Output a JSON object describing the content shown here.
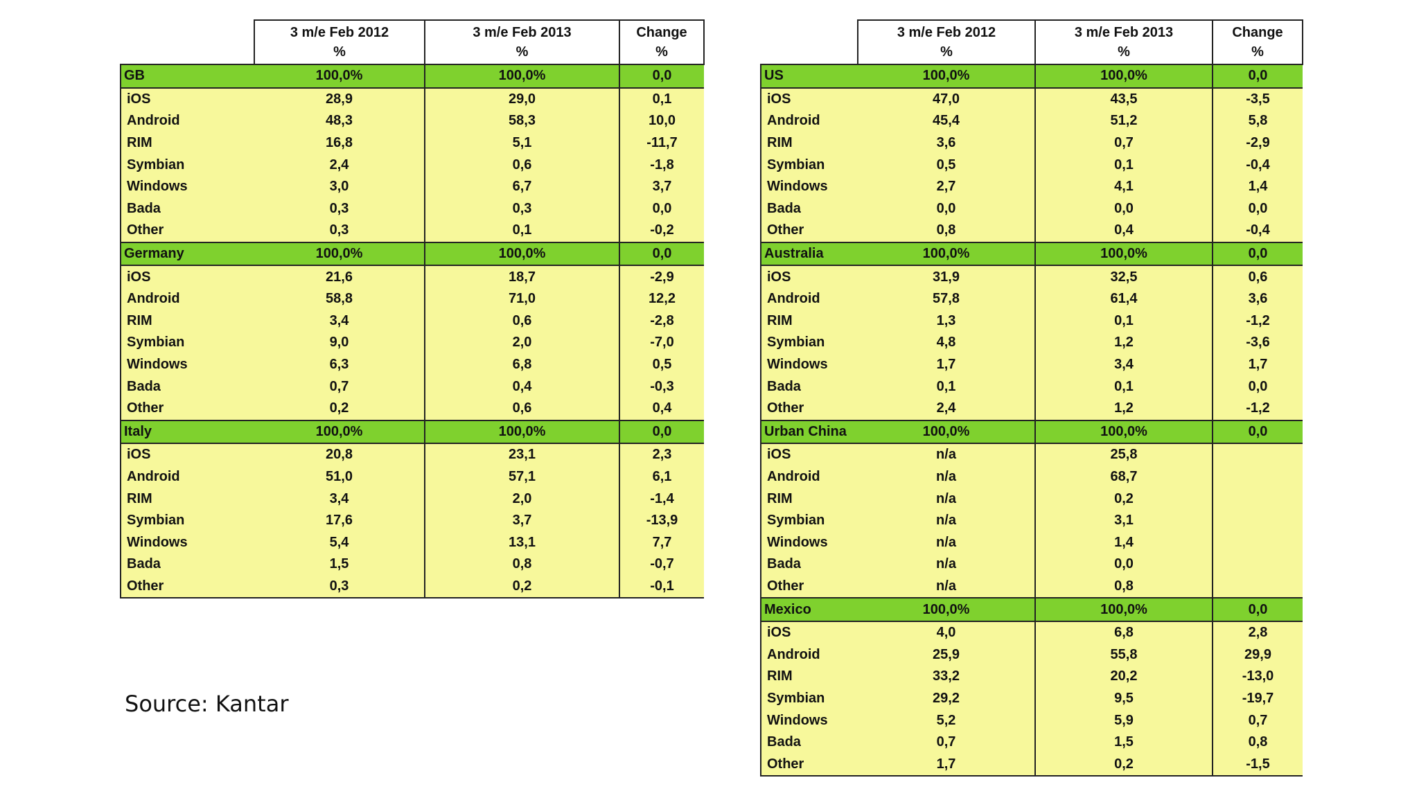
{
  "chart_data": {
    "type": "table",
    "columns": [
      "",
      "3 m/e Feb 2012",
      "3 m/e Feb 2013",
      "Change"
    ],
    "units": [
      "",
      "%",
      "%",
      "%"
    ],
    "tables": [
      {
        "sections": [
          {
            "region": "GB",
            "total": [
              "100,0%",
              "100,0%",
              "0,0"
            ],
            "rows": [
              {
                "os": "iOS",
                "v2012": "28,9",
                "v2013": "29,0",
                "change": "0,1"
              },
              {
                "os": "Android",
                "v2012": "48,3",
                "v2013": "58,3",
                "change": "10,0"
              },
              {
                "os": "RIM",
                "v2012": "16,8",
                "v2013": "5,1",
                "change": "-11,7"
              },
              {
                "os": "Symbian",
                "v2012": "2,4",
                "v2013": "0,6",
                "change": "-1,8"
              },
              {
                "os": "Windows",
                "v2012": "3,0",
                "v2013": "6,7",
                "change": "3,7"
              },
              {
                "os": "Bada",
                "v2012": "0,3",
                "v2013": "0,3",
                "change": "0,0"
              },
              {
                "os": "Other",
                "v2012": "0,3",
                "v2013": "0,1",
                "change": "-0,2"
              }
            ]
          },
          {
            "region": "Germany",
            "total": [
              "100,0%",
              "100,0%",
              "0,0"
            ],
            "rows": [
              {
                "os": "iOS",
                "v2012": "21,6",
                "v2013": "18,7",
                "change": "-2,9"
              },
              {
                "os": "Android",
                "v2012": "58,8",
                "v2013": "71,0",
                "change": "12,2"
              },
              {
                "os": "RIM",
                "v2012": "3,4",
                "v2013": "0,6",
                "change": "-2,8"
              },
              {
                "os": "Symbian",
                "v2012": "9,0",
                "v2013": "2,0",
                "change": "-7,0"
              },
              {
                "os": "Windows",
                "v2012": "6,3",
                "v2013": "6,8",
                "change": "0,5"
              },
              {
                "os": "Bada",
                "v2012": "0,7",
                "v2013": "0,4",
                "change": "-0,3"
              },
              {
                "os": "Other",
                "v2012": "0,2",
                "v2013": "0,6",
                "change": "0,4"
              }
            ]
          },
          {
            "region": "Italy",
            "total": [
              "100,0%",
              "100,0%",
              "0,0"
            ],
            "rows": [
              {
                "os": "iOS",
                "v2012": "20,8",
                "v2013": "23,1",
                "change": "2,3"
              },
              {
                "os": "Android",
                "v2012": "51,0",
                "v2013": "57,1",
                "change": "6,1"
              },
              {
                "os": "RIM",
                "v2012": "3,4",
                "v2013": "2,0",
                "change": "-1,4"
              },
              {
                "os": "Symbian",
                "v2012": "17,6",
                "v2013": "3,7",
                "change": "-13,9"
              },
              {
                "os": "Windows",
                "v2012": "5,4",
                "v2013": "13,1",
                "change": "7,7"
              },
              {
                "os": "Bada",
                "v2012": "1,5",
                "v2013": "0,8",
                "change": "-0,7"
              },
              {
                "os": "Other",
                "v2012": "0,3",
                "v2013": "0,2",
                "change": "-0,1"
              }
            ]
          }
        ]
      },
      {
        "sections": [
          {
            "region": "US",
            "total": [
              "100,0%",
              "100,0%",
              "0,0"
            ],
            "rows": [
              {
                "os": "iOS",
                "v2012": "47,0",
                "v2013": "43,5",
                "change": "-3,5"
              },
              {
                "os": "Android",
                "v2012": "45,4",
                "v2013": "51,2",
                "change": "5,8"
              },
              {
                "os": "RIM",
                "v2012": "3,6",
                "v2013": "0,7",
                "change": "-2,9"
              },
              {
                "os": "Symbian",
                "v2012": "0,5",
                "v2013": "0,1",
                "change": "-0,4"
              },
              {
                "os": "Windows",
                "v2012": "2,7",
                "v2013": "4,1",
                "change": "1,4"
              },
              {
                "os": "Bada",
                "v2012": "0,0",
                "v2013": "0,0",
                "change": "0,0"
              },
              {
                "os": "Other",
                "v2012": "0,8",
                "v2013": "0,4",
                "change": "-0,4"
              }
            ]
          },
          {
            "region": "Australia",
            "total": [
              "100,0%",
              "100,0%",
              "0,0"
            ],
            "rows": [
              {
                "os": "iOS",
                "v2012": "31,9",
                "v2013": "32,5",
                "change": "0,6"
              },
              {
                "os": "Android",
                "v2012": "57,8",
                "v2013": "61,4",
                "change": "3,6"
              },
              {
                "os": "RIM",
                "v2012": "1,3",
                "v2013": "0,1",
                "change": "-1,2"
              },
              {
                "os": "Symbian",
                "v2012": "4,8",
                "v2013": "1,2",
                "change": "-3,6"
              },
              {
                "os": "Windows",
                "v2012": "1,7",
                "v2013": "3,4",
                "change": "1,7"
              },
              {
                "os": "Bada",
                "v2012": "0,1",
                "v2013": "0,1",
                "change": "0,0"
              },
              {
                "os": "Other",
                "v2012": "2,4",
                "v2013": "1,2",
                "change": "-1,2"
              }
            ]
          },
          {
            "region": "Urban China",
            "total": [
              "100,0%",
              "100,0%",
              "0,0"
            ],
            "rows": [
              {
                "os": "iOS",
                "v2012": "n/a",
                "v2013": "25,8",
                "change": ""
              },
              {
                "os": "Android",
                "v2012": "n/a",
                "v2013": "68,7",
                "change": ""
              },
              {
                "os": "RIM",
                "v2012": "n/a",
                "v2013": "0,2",
                "change": ""
              },
              {
                "os": "Symbian",
                "v2012": "n/a",
                "v2013": "3,1",
                "change": ""
              },
              {
                "os": "Windows",
                "v2012": "n/a",
                "v2013": "1,4",
                "change": ""
              },
              {
                "os": "Bada",
                "v2012": "n/a",
                "v2013": "0,0",
                "change": ""
              },
              {
                "os": "Other",
                "v2012": "n/a",
                "v2013": "0,8",
                "change": ""
              }
            ]
          },
          {
            "region": "Mexico",
            "total": [
              "100,0%",
              "100,0%",
              "0,0"
            ],
            "rows": [
              {
                "os": "iOS",
                "v2012": "4,0",
                "v2013": "6,8",
                "change": "2,8"
              },
              {
                "os": "Android",
                "v2012": "25,9",
                "v2013": "55,8",
                "change": "29,9"
              },
              {
                "os": "RIM",
                "v2012": "33,2",
                "v2013": "20,2",
                "change": "-13,0"
              },
              {
                "os": "Symbian",
                "v2012": "29,2",
                "v2013": "9,5",
                "change": "-19,7"
              },
              {
                "os": "Windows",
                "v2012": "5,2",
                "v2013": "5,9",
                "change": "0,7"
              },
              {
                "os": "Bada",
                "v2012": "0,7",
                "v2013": "1,5",
                "change": "0,8"
              },
              {
                "os": "Other",
                "v2012": "1,7",
                "v2013": "0,2",
                "change": "-1,5"
              }
            ]
          }
        ]
      }
    ],
    "colors": {
      "section_header": "#7fd12e",
      "row_fill": "#f7f89b",
      "border": "#222222"
    }
  },
  "source": "Source: Kantar"
}
